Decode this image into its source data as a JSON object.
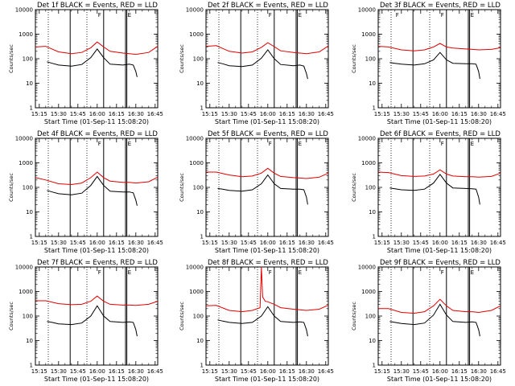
{
  "figure": {
    "background": "#ffffff",
    "events_color": "#000000",
    "lld_color": "#e00000",
    "yscale": "log",
    "ylim": [
      1,
      10000
    ],
    "xlim": [
      "15:12",
      "16:47"
    ]
  },
  "chart_data": [
    {
      "type": "line",
      "title": "Det 1f BLACK = Events, RED = LLD",
      "xlabel": "Start Time (01-Sep-11 15:08:20)",
      "ylabel": "Counts/sec",
      "x_ticks": [
        "15:15",
        "15:30",
        "15:45",
        "16:00",
        "16:15",
        "16:30",
        "16:45"
      ],
      "y_ticks": [
        "1",
        "10",
        "100",
        "1000",
        "10000"
      ],
      "dotted_lines": [
        "15:22",
        "15:52",
        "16:22"
      ],
      "solid_lines": [
        "15:39",
        "16:05",
        "16:22",
        "16:23"
      ],
      "markers": [
        {
          "x": "16:23",
          "label": "E"
        },
        {
          "x": "16:00",
          "label": "F"
        }
      ],
      "series": [
        {
          "name": "LLD",
          "x": [
            "15:12",
            "15:20",
            "15:30",
            "15:40",
            "15:48",
            "15:55",
            "16:00",
            "16:05",
            "16:10",
            "16:20",
            "16:25",
            "16:30",
            "16:40",
            "16:47"
          ],
          "y": [
            300,
            320,
            190,
            160,
            180,
            280,
            480,
            300,
            200,
            170,
            160,
            150,
            180,
            320
          ]
        },
        {
          "name": "Events",
          "x": [
            "15:21",
            "15:25",
            "15:30",
            "15:40",
            "15:48",
            "15:55",
            "16:00",
            "16:05",
            "16:10",
            "16:20",
            "16:25",
            "16:28",
            "16:30",
            "16:31"
          ],
          "y": [
            75,
            65,
            55,
            50,
            58,
            110,
            250,
            110,
            60,
            55,
            60,
            55,
            30,
            18
          ]
        }
      ]
    },
    {
      "type": "line",
      "title": "Det 2f BLACK = Events, RED = LLD",
      "xlabel": "Start Time (01-Sep-11 15:08:20)",
      "ylabel": "Counts/sec",
      "x_ticks": [
        "15:15",
        "15:30",
        "15:45",
        "16:00",
        "16:15",
        "16:30",
        "16:45"
      ],
      "y_ticks": [
        "1",
        "10",
        "100",
        "1000",
        "10000"
      ],
      "dotted_lines": [
        "15:22",
        "15:52",
        "16:22"
      ],
      "solid_lines": [
        "15:39",
        "16:05",
        "16:22",
        "16:23"
      ],
      "markers": [
        {
          "x": "16:23",
          "label": "E"
        },
        {
          "x": "16:00",
          "label": "F"
        }
      ],
      "series": [
        {
          "name": "LLD",
          "x": [
            "15:12",
            "15:20",
            "15:30",
            "15:40",
            "15:48",
            "15:55",
            "16:00",
            "16:05",
            "16:10",
            "16:20",
            "16:25",
            "16:30",
            "16:40",
            "16:47"
          ],
          "y": [
            320,
            340,
            200,
            170,
            190,
            290,
            450,
            310,
            210,
            180,
            170,
            160,
            190,
            330
          ]
        },
        {
          "name": "Events",
          "x": [
            "15:21",
            "15:25",
            "15:30",
            "15:40",
            "15:48",
            "15:55",
            "16:00",
            "16:05",
            "16:10",
            "16:20",
            "16:25",
            "16:28",
            "16:30",
            "16:31"
          ],
          "y": [
            70,
            62,
            52,
            48,
            55,
            105,
            230,
            100,
            58,
            52,
            55,
            50,
            25,
            15
          ]
        }
      ]
    },
    {
      "type": "line",
      "title": "Det 3f BLACK = Events, RED = LLD",
      "xlabel": "Start Time (01-Sep-11 15:08:20)",
      "ylabel": "Counts/sec",
      "x_ticks": [
        "15:15",
        "15:30",
        "15:45",
        "16:00",
        "16:15",
        "16:30",
        "16:45"
      ],
      "y_ticks": [
        "1",
        "10",
        "100",
        "1000",
        "10000"
      ],
      "dotted_lines": [
        "15:22",
        "15:52",
        "16:22"
      ],
      "solid_lines": [
        "15:39",
        "16:05",
        "16:22",
        "16:23"
      ],
      "markers": [
        {
          "x": "16:23",
          "label": "E"
        },
        {
          "x": "15:25",
          "label": "F"
        },
        {
          "x": "16:00",
          "label": "F"
        }
      ],
      "series": [
        {
          "name": "LLD",
          "x": [
            "15:12",
            "15:20",
            "15:30",
            "15:40",
            "15:48",
            "15:55",
            "16:00",
            "16:05",
            "16:10",
            "16:20",
            "16:25",
            "16:30",
            "16:40",
            "16:47"
          ],
          "y": [
            320,
            300,
            230,
            210,
            230,
            300,
            420,
            300,
            270,
            250,
            240,
            230,
            240,
            280
          ]
        },
        {
          "name": "Events",
          "x": [
            "15:21",
            "15:25",
            "15:30",
            "15:40",
            "15:48",
            "15:55",
            "16:00",
            "16:05",
            "16:10",
            "16:20",
            "16:25",
            "16:28",
            "16:30",
            "16:31"
          ],
          "y": [
            70,
            65,
            60,
            55,
            62,
            90,
            180,
            90,
            65,
            62,
            62,
            60,
            30,
            15
          ]
        }
      ]
    },
    {
      "type": "line",
      "title": "Det 4f BLACK = Events, RED = LLD",
      "xlabel": "Start Time (01-Sep-11 15:08:20)",
      "ylabel": "Counts/sec",
      "x_ticks": [
        "15:15",
        "15:30",
        "15:45",
        "16:00",
        "16:15",
        "16:30",
        "16:45"
      ],
      "y_ticks": [
        "1",
        "10",
        "100",
        "1000",
        "10000"
      ],
      "dotted_lines": [
        "15:22",
        "15:52",
        "16:22"
      ],
      "solid_lines": [
        "15:39",
        "16:05",
        "16:22",
        "16:23"
      ],
      "markers": [
        {
          "x": "16:23",
          "label": "E"
        },
        {
          "x": "16:00",
          "label": "F"
        }
      ],
      "series": [
        {
          "name": "LLD",
          "x": [
            "15:12",
            "15:20",
            "15:30",
            "15:40",
            "15:48",
            "15:55",
            "16:00",
            "16:05",
            "16:10",
            "16:20",
            "16:25",
            "16:30",
            "16:40",
            "16:47"
          ],
          "y": [
            250,
            200,
            140,
            130,
            150,
            250,
            420,
            250,
            180,
            160,
            160,
            150,
            170,
            260
          ]
        },
        {
          "name": "Events",
          "x": [
            "15:21",
            "15:25",
            "15:30",
            "15:40",
            "15:48",
            "15:55",
            "16:00",
            "16:05",
            "16:10",
            "16:20",
            "16:25",
            "16:28",
            "16:30",
            "16:31"
          ],
          "y": [
            75,
            65,
            55,
            50,
            58,
            120,
            280,
            120,
            70,
            65,
            65,
            60,
            30,
            18
          ]
        }
      ]
    },
    {
      "type": "line",
      "title": "Det 5f BLACK = Events, RED = LLD",
      "xlabel": "Start Time (01-Sep-11 15:08:20)",
      "ylabel": "Counts/sec",
      "x_ticks": [
        "15:15",
        "15:30",
        "15:45",
        "16:00",
        "16:15",
        "16:30",
        "16:45"
      ],
      "y_ticks": [
        "1",
        "10",
        "100",
        "1000",
        "10000"
      ],
      "dotted_lines": [
        "15:22",
        "15:52",
        "16:22"
      ],
      "solid_lines": [
        "15:39",
        "16:05",
        "16:22",
        "16:23"
      ],
      "markers": [
        {
          "x": "16:23",
          "label": "E"
        },
        {
          "x": "16:00",
          "label": "F"
        }
      ],
      "series": [
        {
          "name": "LLD",
          "x": [
            "15:12",
            "15:20",
            "15:30",
            "15:40",
            "15:48",
            "15:55",
            "16:00",
            "16:05",
            "16:10",
            "16:20",
            "16:25",
            "16:30",
            "16:40",
            "16:47"
          ],
          "y": [
            420,
            420,
            320,
            270,
            290,
            380,
            600,
            380,
            280,
            250,
            240,
            230,
            260,
            380
          ]
        },
        {
          "name": "Events",
          "x": [
            "15:21",
            "15:25",
            "15:30",
            "15:40",
            "15:48",
            "15:55",
            "16:00",
            "16:05",
            "16:10",
            "16:20",
            "16:25",
            "16:28",
            "16:30",
            "16:31"
          ],
          "y": [
            90,
            85,
            75,
            70,
            80,
            140,
            320,
            140,
            90,
            85,
            85,
            80,
            40,
            20
          ]
        }
      ]
    },
    {
      "type": "line",
      "title": "Det 6f BLACK = Events, RED = LLD",
      "xlabel": "Start Time (01-Sep-11 15:08:20)",
      "ylabel": "Counts/sec",
      "x_ticks": [
        "15:15",
        "15:30",
        "15:45",
        "16:00",
        "16:15",
        "16:30",
        "16:45"
      ],
      "y_ticks": [
        "1",
        "10",
        "100",
        "1000",
        "10000"
      ],
      "dotted_lines": [
        "15:22",
        "15:52",
        "16:22"
      ],
      "solid_lines": [
        "15:39",
        "16:05",
        "16:22",
        "16:23"
      ],
      "markers": [
        {
          "x": "16:23",
          "label": "E"
        },
        {
          "x": "16:00",
          "label": "F"
        }
      ],
      "series": [
        {
          "name": "LLD",
          "x": [
            "15:12",
            "15:20",
            "15:30",
            "15:40",
            "15:48",
            "15:55",
            "16:00",
            "16:05",
            "16:10",
            "16:20",
            "16:25",
            "16:30",
            "16:40",
            "16:47"
          ],
          "y": [
            420,
            400,
            300,
            280,
            290,
            350,
            520,
            350,
            290,
            270,
            270,
            260,
            280,
            380
          ]
        },
        {
          "name": "Events",
          "x": [
            "15:21",
            "15:25",
            "15:30",
            "15:40",
            "15:48",
            "15:55",
            "16:00",
            "16:05",
            "16:10",
            "16:20",
            "16:25",
            "16:28",
            "16:30",
            "16:31"
          ],
          "y": [
            95,
            88,
            80,
            75,
            85,
            150,
            340,
            150,
            95,
            90,
            88,
            85,
            40,
            20
          ]
        }
      ]
    },
    {
      "type": "line",
      "title": "Det 7f BLACK = Events, RED = LLD",
      "xlabel": "Start Time (01-Sep-11 15:08:20)",
      "ylabel": "Counts/sec",
      "x_ticks": [
        "15:15",
        "15:30",
        "15:45",
        "16:00",
        "16:15",
        "16:30",
        "16:45"
      ],
      "y_ticks": [
        "1",
        "10",
        "100",
        "1000",
        "10000"
      ],
      "dotted_lines": [
        "15:22",
        "15:52",
        "16:22"
      ],
      "solid_lines": [
        "15:39",
        "16:05",
        "16:22",
        "16:23"
      ],
      "markers": [
        {
          "x": "16:23",
          "label": "E"
        },
        {
          "x": "16:00",
          "label": "F"
        }
      ],
      "series": [
        {
          "name": "LLD",
          "x": [
            "15:12",
            "15:20",
            "15:30",
            "15:40",
            "15:48",
            "15:55",
            "16:00",
            "16:05",
            "16:10",
            "16:20",
            "16:25",
            "16:30",
            "16:40",
            "16:47"
          ],
          "y": [
            420,
            420,
            320,
            290,
            300,
            400,
            650,
            400,
            300,
            280,
            280,
            270,
            300,
            400
          ]
        },
        {
          "name": "Events",
          "x": [
            "15:21",
            "15:25",
            "15:30",
            "15:40",
            "15:48",
            "15:55",
            "16:00",
            "16:05",
            "16:10",
            "16:20",
            "16:25",
            "16:28",
            "16:30",
            "16:31"
          ],
          "y": [
            60,
            55,
            48,
            45,
            52,
            100,
            260,
            100,
            60,
            55,
            58,
            55,
            28,
            15
          ]
        }
      ]
    },
    {
      "type": "line",
      "title": "Det 8f BLACK = Events, RED = LLD",
      "xlabel": "Start Time (01-Sep-11 15:08:20)",
      "ylabel": "Counts/sec",
      "x_ticks": [
        "15:15",
        "15:30",
        "15:45",
        "16:00",
        "16:15",
        "16:30",
        "16:45"
      ],
      "y_ticks": [
        "1",
        "10",
        "100",
        "1000",
        "10000"
      ],
      "dotted_lines": [
        "15:22",
        "15:52",
        "16:22"
      ],
      "solid_lines": [
        "15:39",
        "16:05",
        "16:22",
        "16:23"
      ],
      "markers": [
        {
          "x": "16:23",
          "label": "E"
        },
        {
          "x": "16:00",
          "label": "F"
        }
      ],
      "series": [
        {
          "name": "LLD",
          "x": [
            "15:12",
            "15:20",
            "15:30",
            "15:40",
            "15:48",
            "15:54",
            "15:55",
            "15:56",
            "15:58",
            "16:00",
            "16:05",
            "16:10",
            "16:20",
            "16:25",
            "16:30",
            "16:40",
            "16:47"
          ],
          "y": [
            260,
            270,
            170,
            150,
            170,
            220,
            10000,
            600,
            400,
            380,
            300,
            220,
            190,
            180,
            170,
            190,
            280
          ]
        },
        {
          "name": "Events",
          "x": [
            "15:21",
            "15:25",
            "15:30",
            "15:40",
            "15:48",
            "15:55",
            "16:00",
            "16:05",
            "16:10",
            "16:20",
            "16:25",
            "16:28",
            "16:30",
            "16:31"
          ],
          "y": [
            70,
            62,
            55,
            50,
            55,
            100,
            240,
            100,
            60,
            55,
            58,
            55,
            28,
            15
          ]
        }
      ]
    },
    {
      "type": "line",
      "title": "Det 9f BLACK = Events, RED = LLD",
      "xlabel": "Start Time (01-Sep-11 15:08:20)",
      "ylabel": "Counts/sec",
      "x_ticks": [
        "15:15",
        "15:30",
        "15:45",
        "16:00",
        "16:15",
        "16:30",
        "16:45"
      ],
      "y_ticks": [
        "1",
        "10",
        "100",
        "1000",
        "10000"
      ],
      "dotted_lines": [
        "15:22",
        "15:52",
        "16:22"
      ],
      "solid_lines": [
        "15:39",
        "16:05",
        "16:22",
        "16:23"
      ],
      "markers": [
        {
          "x": "16:23",
          "label": "E"
        },
        {
          "x": "16:00",
          "label": "F"
        }
      ],
      "series": [
        {
          "name": "LLD",
          "x": [
            "15:12",
            "15:20",
            "15:30",
            "15:40",
            "15:48",
            "15:55",
            "16:00",
            "16:05",
            "16:10",
            "16:20",
            "16:25",
            "16:30",
            "16:40",
            "16:47"
          ],
          "y": [
            200,
            200,
            140,
            130,
            150,
            260,
            480,
            260,
            170,
            150,
            150,
            140,
            170,
            260
          ]
        },
        {
          "name": "Events",
          "x": [
            "15:21",
            "15:25",
            "15:30",
            "15:40",
            "15:48",
            "15:55",
            "16:00",
            "16:05",
            "16:10",
            "16:20",
            "16:25",
            "16:28",
            "16:30",
            "16:31"
          ],
          "y": [
            60,
            55,
            50,
            45,
            52,
            110,
            300,
            110,
            60,
            55,
            58,
            55,
            28,
            15
          ]
        }
      ]
    }
  ]
}
